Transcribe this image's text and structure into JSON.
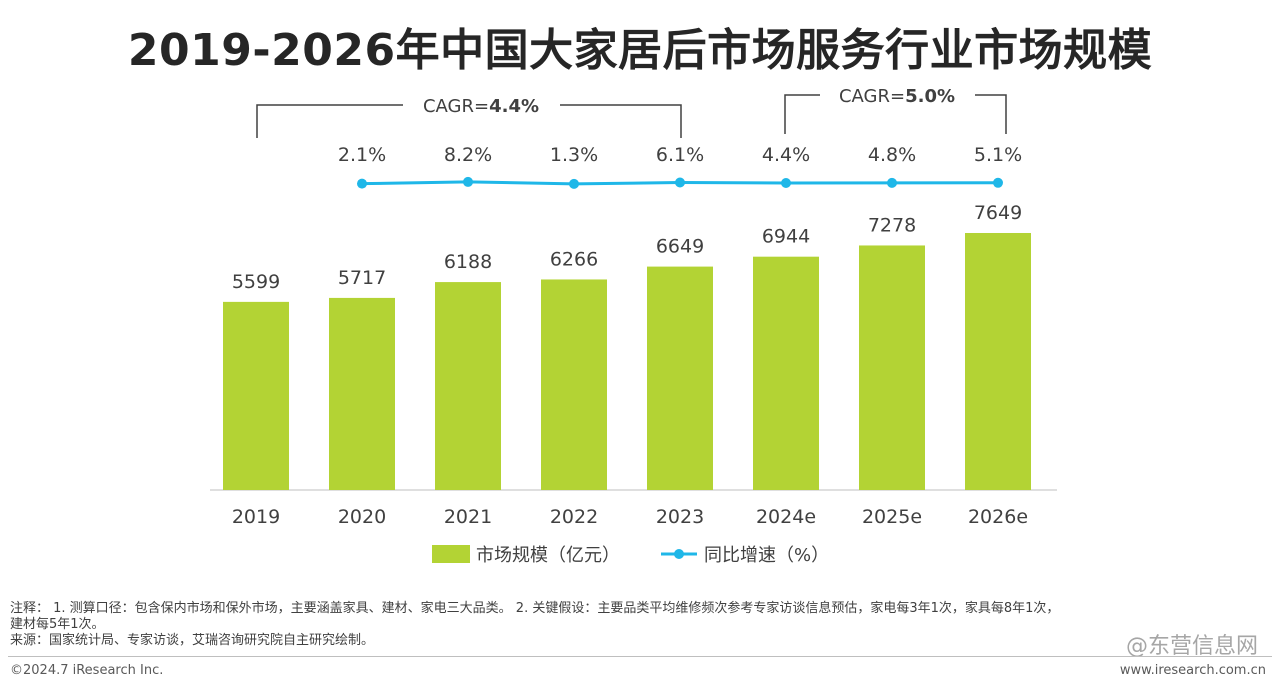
{
  "title": "2019-2026年中国大家居后市场服务行业市场规模",
  "chart_data": {
    "type": "bar",
    "categories": [
      "2019",
      "2020",
      "2021",
      "2022",
      "2023",
      "2024e",
      "2025e",
      "2026e"
    ],
    "series": [
      {
        "name": "市场规模（亿元）",
        "type": "bar",
        "color": "#b3d334",
        "values": [
          5599,
          5717,
          6188,
          6266,
          6649,
          6944,
          7278,
          7649
        ]
      },
      {
        "name": "同比增速（%）",
        "type": "line",
        "color": "#1fb7e8",
        "values": [
          null,
          2.1,
          8.2,
          1.3,
          6.1,
          4.4,
          4.8,
          5.1
        ],
        "labels": [
          "",
          "2.1%",
          "8.2%",
          "1.3%",
          "6.1%",
          "4.4%",
          "4.8%",
          "5.1%"
        ]
      }
    ],
    "cagr": [
      {
        "label": "CAGR=",
        "value": "4.4%",
        "from": "2019",
        "to": "2023"
      },
      {
        "label": "CAGR=",
        "value": "5.0%",
        "from": "2024e",
        "to": "2026e"
      }
    ],
    "legend_position": "bottom",
    "grid": false
  },
  "notes": {
    "line1": "注释：  1. 测算口径：包含保内市场和保外市场，主要涵盖家具、建材、家电三大品类。 2. 关键假设：主要品类平均维修频次参考专家访谈信息预估，家电每3年1次，家具每8年1次，",
    "line2": "建材每5年1次。",
    "source": "来源：国家统计局、专家访谈，艾瑞咨询研究院自主研究绘制。"
  },
  "footer": {
    "copyright": "©2024.7 iResearch Inc.",
    "website": "www.iresearch.com.cn"
  },
  "watermark": "@东营信息网"
}
